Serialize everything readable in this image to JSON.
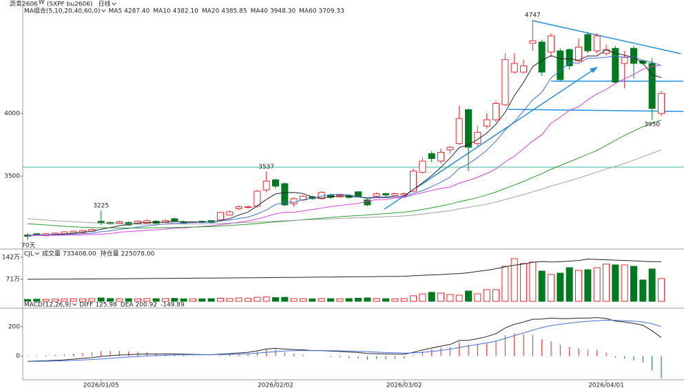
{
  "chart_data": [
    {
      "type": "candlestick",
      "title": "沥青2606",
      "title_marker": "W",
      "code": "(SXPF bu2606)",
      "period": "日线",
      "indicator_label": "MA组合(5,10,20,40,60,0)",
      "range_label": "70天",
      "up_color": "#e8262b",
      "down_color": "#007a1e",
      "categories": [
        null,
        null,
        null,
        null,
        null,
        null,
        null,
        null,
        "2026/01/05",
        null,
        null,
        null,
        null,
        null,
        null,
        null,
        null,
        null,
        null,
        null,
        null,
        null,
        null,
        null,
        null,
        null,
        null,
        "2026/02/02",
        null,
        null,
        null,
        null,
        null,
        null,
        null,
        null,
        null,
        null,
        null,
        null,
        null,
        "2026/03/02",
        null,
        null,
        null,
        null,
        null,
        null,
        null,
        null,
        null,
        null,
        null,
        null,
        null,
        null,
        null,
        null,
        null,
        null,
        null,
        null,
        null,
        "2026/04/01",
        null,
        null,
        null,
        null,
        null,
        null
      ],
      "open": [
        3030,
        3040,
        3025,
        3035,
        3040,
        3045,
        3050,
        3060,
        3140,
        3130,
        3125,
        3130,
        3120,
        3125,
        3140,
        3130,
        3160,
        3135,
        3130,
        3140,
        3145,
        3150,
        3190,
        3240,
        3250,
        3260,
        3390,
        3470,
        3440,
        3280,
        3310,
        3335,
        3320,
        3350,
        3335,
        3345,
        3375,
        3310,
        3340,
        3360,
        3345,
        3350,
        3380,
        3530,
        3680,
        3620,
        3710,
        3760,
        4030,
        3760,
        3900,
        3950,
        4070,
        4330,
        4330,
        4560,
        4570,
        4490,
        4500,
        4510,
        4420,
        4630,
        4500,
        4480,
        4520,
        4400,
        4520,
        4420,
        4400,
        4000
      ],
      "high": [
        3045,
        3045,
        3045,
        3050,
        3060,
        3065,
        3070,
        3080,
        3225,
        3140,
        3145,
        3140,
        3150,
        3155,
        3150,
        3155,
        3170,
        3145,
        3140,
        3145,
        3150,
        3215,
        3225,
        3265,
        3265,
        3390,
        3537,
        3480,
        3450,
        3330,
        3350,
        3345,
        3380,
        3360,
        3360,
        3355,
        3380,
        3320,
        3370,
        3370,
        3370,
        3370,
        3560,
        3650,
        3700,
        3720,
        3740,
        4060,
        4040,
        3900,
        4000,
        4100,
        4480,
        4480,
        4430,
        4747,
        4590,
        4640,
        4520,
        4520,
        4600,
        4650,
        4640,
        4550,
        4540,
        4500,
        4540,
        4430,
        4440,
        4180
      ],
      "low": [
        2990,
        3025,
        3020,
        3030,
        3035,
        3040,
        3045,
        3055,
        3110,
        3115,
        3120,
        3105,
        3115,
        3120,
        3120,
        3125,
        3135,
        3120,
        3125,
        3125,
        3125,
        3145,
        3185,
        3230,
        3240,
        3245,
        3370,
        3400,
        3260,
        3255,
        3300,
        3310,
        3315,
        3320,
        3330,
        3320,
        3330,
        3260,
        3335,
        3340,
        3340,
        3345,
        3370,
        3520,
        3610,
        3600,
        3680,
        3750,
        3540,
        3740,
        3880,
        3930,
        4060,
        4320,
        4320,
        4500,
        4300,
        4450,
        4260,
        4350,
        4410,
        4480,
        4480,
        4460,
        4240,
        4200,
        4280,
        4390,
        3950,
        3980
      ],
      "close": [
        3020,
        3030,
        3040,
        3045,
        3055,
        3060,
        3065,
        3075,
        3125,
        3120,
        3135,
        3110,
        3140,
        3145,
        3125,
        3145,
        3140,
        3125,
        3135,
        3130,
        3130,
        3210,
        3215,
        3255,
        3255,
        3380,
        3460,
        3420,
        3270,
        3320,
        3340,
        3320,
        3370,
        3330,
        3350,
        3330,
        3335,
        3270,
        3360,
        3350,
        3360,
        3360,
        3540,
        3620,
        3640,
        3690,
        3730,
        3960,
        3730,
        3850,
        3950,
        4080,
        4430,
        4400,
        4380,
        4580,
        4330,
        4620,
        4270,
        4380,
        4530,
        4500,
        4620,
        4510,
        4250,
        4450,
        4400,
        4400,
        4040,
        4160
      ],
      "ylim": [
        2940,
        4840
      ],
      "yticks": [
        4000,
        3500
      ],
      "series": [
        {
          "name": "MA5",
          "color": "#222222",
          "last_value_label": "4287.40",
          "values": [
            3030,
            3030,
            3030,
            3035,
            3038,
            3046,
            3053,
            3060,
            3076,
            3089,
            3104,
            3113,
            3126,
            3131,
            3131,
            3133,
            3139,
            3136,
            3134,
            3135,
            3132,
            3146,
            3161,
            3189,
            3213,
            3263,
            3313,
            3358,
            3369,
            3370,
            3362,
            3334,
            3324,
            3336,
            3342,
            3340,
            3333,
            3323,
            3329,
            3329,
            3335,
            3340,
            3394,
            3446,
            3504,
            3570,
            3644,
            3728,
            3750,
            3792,
            3844,
            3914,
            4008,
            4142,
            4248,
            4374,
            4424,
            4462,
            4436,
            4436,
            4426,
            4460,
            4460,
            4508,
            4482,
            4466,
            4446,
            4402,
            4308,
            4287.4
          ]
        },
        {
          "name": "MA10",
          "color": "#3f6fd8",
          "last_value_label": "4382.10",
          "values": [
            3030,
            3030,
            3030,
            3032,
            3034,
            3038,
            3041,
            3045,
            3056,
            3063,
            3075,
            3083,
            3093,
            3103,
            3110,
            3118,
            3126,
            3124,
            3130,
            3133,
            3132,
            3142,
            3149,
            3162,
            3173,
            3198,
            3230,
            3273,
            3291,
            3291,
            3312,
            3324,
            3341,
            3352,
            3356,
            3351,
            3333,
            3329,
            3332,
            3335,
            3337,
            3336,
            3361,
            3384,
            3416,
            3452,
            3492,
            3561,
            3598,
            3648,
            3707,
            3779,
            3868,
            3935,
            4020,
            4109,
            4169,
            4285,
            4342,
            4405,
            4400,
            4442,
            4443,
            4449,
            4459,
            4446,
            4453,
            4424,
            4408,
            4382.1
          ]
        },
        {
          "name": "MA20",
          "color": "#e03ce0",
          "last_value_label": "4385.85",
          "values": [
            3025,
            3026,
            3027,
            3028,
            3029,
            3030,
            3032,
            3034,
            3037,
            3040,
            3053,
            3057,
            3062,
            3068,
            3072,
            3078,
            3084,
            3085,
            3093,
            3098,
            3104,
            3113,
            3121,
            3133,
            3142,
            3158,
            3178,
            3199,
            3211,
            3212,
            3222,
            3233,
            3245,
            3258,
            3265,
            3275,
            3282,
            3301,
            3312,
            3313,
            3325,
            3330,
            3351,
            3368,
            3386,
            3402,
            3413,
            3445,
            3465,
            3492,
            3522,
            3558,
            3615,
            3660,
            3718,
            3781,
            3831,
            3923,
            3970,
            4027,
            4054,
            4111,
            4156,
            4192,
            4240,
            4278,
            4311,
            4355,
            4375,
            4385.85
          ]
        },
        {
          "name": "MA40",
          "color": "#2a9d2a",
          "last_value_label": "3948.30",
          "values": [
            3120,
            3115,
            3110,
            3105,
            3100,
            3096,
            3092,
            3090,
            3088,
            3087,
            3086,
            3086,
            3086,
            3087,
            3088,
            3089,
            3090,
            3092,
            3094,
            3096,
            3098,
            3102,
            3106,
            3110,
            3115,
            3121,
            3128,
            3135,
            3140,
            3146,
            3152,
            3158,
            3164,
            3170,
            3176,
            3181,
            3186,
            3190,
            3196,
            3201,
            3207,
            3212,
            3222,
            3234,
            3247,
            3261,
            3276,
            3296,
            3311,
            3329,
            3350,
            3373,
            3402,
            3430,
            3457,
            3490,
            3520,
            3555,
            3585,
            3615,
            3645,
            3675,
            3705,
            3745,
            3785,
            3825,
            3860,
            3895,
            3922,
            3948.3
          ]
        },
        {
          "name": "MA60",
          "color": "#a0a0a0",
          "last_value_label": "3709.33",
          "values": [
            3160,
            3155,
            3150,
            3145,
            3140,
            3136,
            3132,
            3128,
            3125,
            3122,
            3120,
            3118,
            3117,
            3116,
            3116,
            3116,
            3117,
            3118,
            3119,
            3120,
            3121,
            3123,
            3125,
            3127,
            3130,
            3133,
            3137,
            3141,
            3144,
            3147,
            3150,
            3153,
            3156,
            3159,
            3162,
            3165,
            3168,
            3170,
            3173,
            3176,
            3179,
            3182,
            3189,
            3197,
            3206,
            3215,
            3225,
            3239,
            3250,
            3263,
            3277,
            3293,
            3313,
            3333,
            3352,
            3375,
            3396,
            3421,
            3441,
            3462,
            3485,
            3508,
            3532,
            3556,
            3578,
            3601,
            3628,
            3655,
            3682,
            3709.33
          ]
        }
      ]
    },
    {
      "type": "volume",
      "title": "CJL",
      "ylim": [
        0,
        1420000
      ],
      "yticks": [
        {
          "value": 1420000,
          "label": "142万"
        },
        {
          "value": 710000,
          "label": "71万"
        }
      ],
      "y2lim": [
        0,
        250000
      ],
      "series": [
        {
          "name": "成交量",
          "color": "#222222",
          "last_value_label": "733408.00",
          "values": [
            60000,
            70000,
            65000,
            70000,
            75000,
            80000,
            75000,
            85000,
            110000,
            90000,
            80000,
            85000,
            80000,
            90000,
            85000,
            90000,
            95000,
            80000,
            75000,
            80000,
            85000,
            100000,
            90000,
            110000,
            95000,
            130000,
            140000,
            120000,
            130000,
            90000,
            85000,
            80000,
            90000,
            85000,
            80000,
            90000,
            100000,
            110000,
            90000,
            85000,
            80000,
            90000,
            180000,
            240000,
            290000,
            266000,
            222000,
            200000,
            333000,
            244000,
            377000,
            377000,
            1130000,
            1375000,
            1220000,
            1265000,
            976000,
            865000,
            910000,
            1087000,
            1000000,
            1020000,
            1087000,
            1200000,
            1176000,
            1176000,
            1130000,
            688000,
            1043000,
            733408
          ]
        },
        {
          "name": "持仓量",
          "color": "#222222",
          "axis": "y2",
          "last_value_label": "225078.00",
          "values": [
            125000,
            125300,
            125600,
            125900,
            126200,
            126500,
            126800,
            127100,
            127400,
            127700,
            128000,
            128400,
            128800,
            129200,
            129600,
            130000,
            130400,
            130800,
            131200,
            131600,
            132000,
            132400,
            132800,
            133200,
            133600,
            134000,
            134500,
            135000,
            135500,
            136000,
            136500,
            137000,
            137500,
            138000,
            138500,
            139000,
            139500,
            140000,
            140500,
            141000,
            141500,
            142000,
            145000,
            148000,
            150000,
            152000,
            155000,
            158000,
            162000,
            170000,
            176000,
            185000,
            196000,
            205000,
            212000,
            222000,
            226000,
            223000,
            225000,
            228000,
            232000,
            240000,
            238000,
            236000,
            234000,
            232000,
            230000,
            227000,
            225000,
            225078
          ]
        }
      ]
    },
    {
      "type": "macd",
      "title": "MACD(12,26,9)",
      "ylim": [
        -160,
        260
      ],
      "yticks": [
        200,
        0
      ],
      "series": [
        {
          "name": "DIFF",
          "color": "#222222",
          "last_value_label": "125.98",
          "values": [
            -35,
            -33,
            -31,
            -28,
            -25,
            -20,
            -15,
            -10,
            -2,
            3,
            8,
            10,
            13,
            15,
            14,
            15,
            15,
            13,
            12,
            11,
            10,
            14,
            17,
            22,
            26,
            36,
            48,
            53,
            48,
            45,
            43,
            38,
            38,
            34,
            32,
            28,
            25,
            18,
            17,
            15,
            14,
            13,
            26,
            42,
            55,
            68,
            79,
            106,
            108,
            118,
            133,
            152,
            191,
            216,
            231,
            250,
            252,
            258,
            255,
            255,
            258,
            258,
            262,
            256,
            238,
            232,
            222,
            210,
            172,
            125.98
          ]
        },
        {
          "name": "DEA",
          "color": "#3f6fd8",
          "last_value_label": "200.92",
          "values": [
            -36,
            -35,
            -34,
            -33,
            -31,
            -29,
            -26,
            -23,
            -19,
            -15,
            -10,
            -6,
            -2,
            1,
            4,
            6,
            8,
            9,
            10,
            10,
            10,
            11,
            12,
            14,
            16,
            20,
            26,
            31,
            35,
            37,
            38,
            38,
            38,
            37,
            36,
            35,
            33,
            30,
            27,
            25,
            23,
            21,
            22,
            26,
            32,
            39,
            47,
            59,
            69,
            79,
            90,
            102,
            120,
            139,
            157,
            177,
            194,
            207,
            216,
            224,
            231,
            236,
            241,
            244,
            243,
            241,
            237,
            232,
            220,
            200.92
          ]
        }
      ],
      "histogram": {
        "up_color": "#e8262b",
        "down_color": "#007a1e",
        "last_value_label": "-149.89",
        "values": [
          2,
          4,
          6,
          10,
          12,
          18,
          22,
          26,
          34,
          36,
          36,
          32,
          30,
          28,
          20,
          18,
          14,
          8,
          4,
          2,
          0,
          6,
          10,
          16,
          20,
          32,
          44,
          44,
          26,
          16,
          10,
          0,
          0,
          -6,
          -8,
          -14,
          -16,
          -24,
          -20,
          -20,
          -18,
          -16,
          8,
          32,
          46,
          58,
          64,
          94,
          78,
          78,
          86,
          100,
          142,
          154,
          148,
          146,
          116,
          102,
          78,
          62,
          54,
          44,
          42,
          24,
          -10,
          -18,
          -30,
          -44,
          -96,
          -149.89
        ]
      }
    }
  ]
}
